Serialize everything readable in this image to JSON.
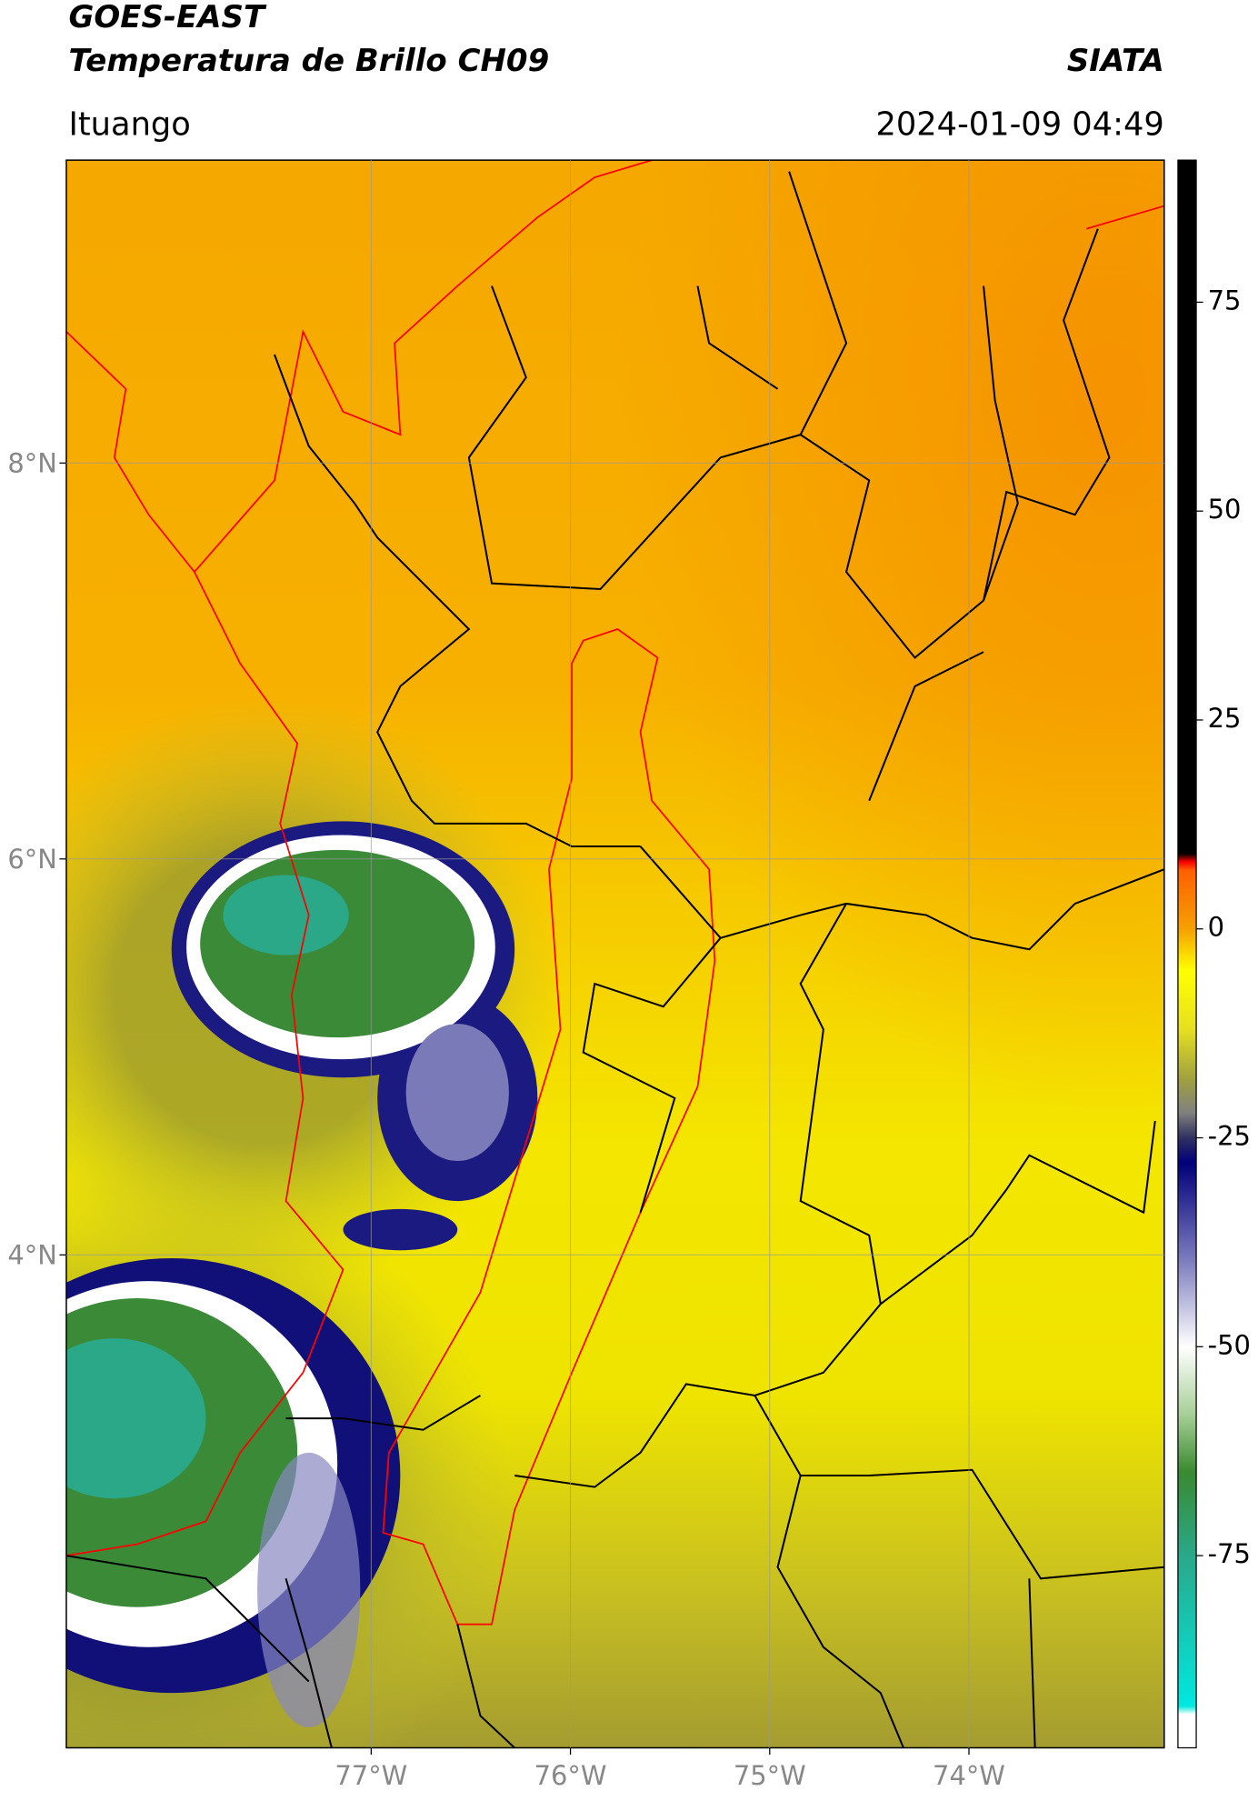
{
  "header": {
    "title": "GOES-EAST",
    "subtitle": "Temperatura de Brillo CH09",
    "agency": "SIATA",
    "location": "Ituango",
    "datetime": "2024-01-09 04:49"
  },
  "map": {
    "xlim": [
      -78.53,
      -73.02
    ],
    "ylim": [
      1.51,
      9.53
    ],
    "xticks": [
      {
        "value": -77,
        "label": "77°W"
      },
      {
        "value": -76,
        "label": "76°W"
      },
      {
        "value": -75,
        "label": "75°W"
      },
      {
        "value": -74,
        "label": "74°W"
      }
    ],
    "yticks": [
      {
        "value": 8,
        "label": "8°N"
      },
      {
        "value": 6,
        "label": "6°N"
      },
      {
        "value": 4,
        "label": "4°N"
      }
    ],
    "grid": true
  },
  "colorbar": {
    "lim": [
      -98,
      92
    ],
    "ticks": [
      75,
      50,
      25,
      0,
      -25,
      -50,
      -75
    ],
    "colormap": [
      [
        -98,
        "#ffffff"
      ],
      [
        -94,
        "#ffffff"
      ],
      [
        -93,
        "#00e8e0"
      ],
      [
        -75,
        "#2aa88a"
      ],
      [
        -65,
        "#3a8a30"
      ],
      [
        -58,
        "#a8d098"
      ],
      [
        -50,
        "#ffffff"
      ],
      [
        -40,
        "#8080c0"
      ],
      [
        -28,
        "#00007a"
      ],
      [
        -25,
        "#303060"
      ],
      [
        -22,
        "#808080"
      ],
      [
        -18,
        "#a0a040"
      ],
      [
        -12,
        "#e6e020"
      ],
      [
        -5,
        "#ffff00"
      ],
      [
        0,
        "#f5a000"
      ],
      [
        7,
        "#ff6000"
      ],
      [
        8,
        "#ff0000"
      ],
      [
        9,
        "#000000"
      ],
      [
        92,
        "#000000"
      ]
    ]
  }
}
